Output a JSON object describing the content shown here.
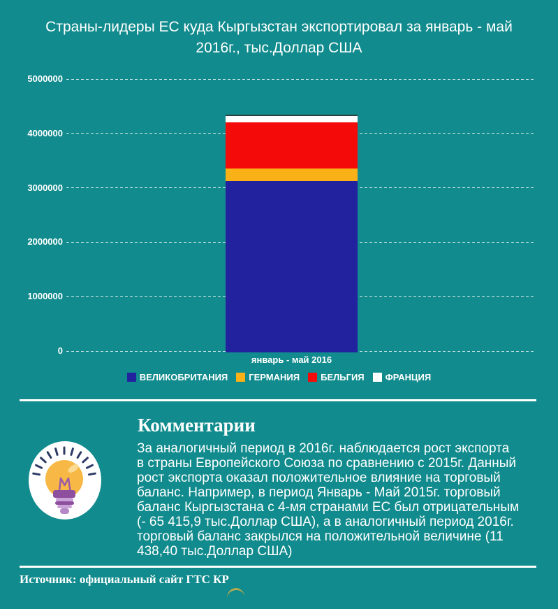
{
  "page": {
    "background_color": "#118b8d",
    "title": "Страны-лидеры ЕС куда Кыргызстан экспортировал за январь - май 2016г., тыс.Доллар США"
  },
  "chart_data": {
    "type": "bar",
    "subtype": "stacked",
    "title": "Страны-лидеры ЕС куда Кыргызстан экспортировал за январь - май 2016г., тыс.Доллар США",
    "categories": [
      "январь - май 2016"
    ],
    "series": [
      {
        "name": "ВЕЛИКОБРИТАНИЯ",
        "color": "#22229e",
        "values": [
          3150000
        ]
      },
      {
        "name": "ГЕРМАНИЯ",
        "color": "#fab117",
        "values": [
          230000
        ]
      },
      {
        "name": "БЕЛЬГИЯ",
        "color": "#f50a0a",
        "values": [
          850000
        ]
      },
      {
        "name": "ФРАНЦИЯ",
        "color": "#ffffff",
        "values": [
          120000
        ]
      }
    ],
    "xlabel": "",
    "ylabel": "",
    "ylim": [
      0,
      5000000
    ],
    "y_ticks": [
      {
        "label": "5000000",
        "value": 5000000
      },
      {
        "label": "4000000",
        "value": 4000000
      },
      {
        "label": "3000000",
        "value": 3000000
      },
      {
        "label": "2000000",
        "value": 2000000
      },
      {
        "label": "1000000",
        "value": 1000000
      },
      {
        "label": "0",
        "value": 0
      }
    ],
    "grid": "horizontal-dashed-white",
    "legend_position": "bottom",
    "bar_top_line_color": "#2f3f41"
  },
  "comments": {
    "heading": "Комментарии",
    "body": "За аналогичный период в 2016г. наблюдается рост экспорта в страны Европейского Союза по сравнению с 2015г. Данный рост экспорта оказал положительное влияние на торговый баланс. Например, в период Январь - Май 2015г. торговый баланс Кыргызстана с 4-мя странами ЕС был отрицательным (- 65 415,9 тыс.Доллар США), а в аналогичный период 2016г. торговый баланс закрылся на положительной величине (11 438,40 тыс.Доллар США)",
    "icon": "lightbulb-icon"
  },
  "footer": {
    "source": "Источник: официальный сайт ГТС КР"
  }
}
